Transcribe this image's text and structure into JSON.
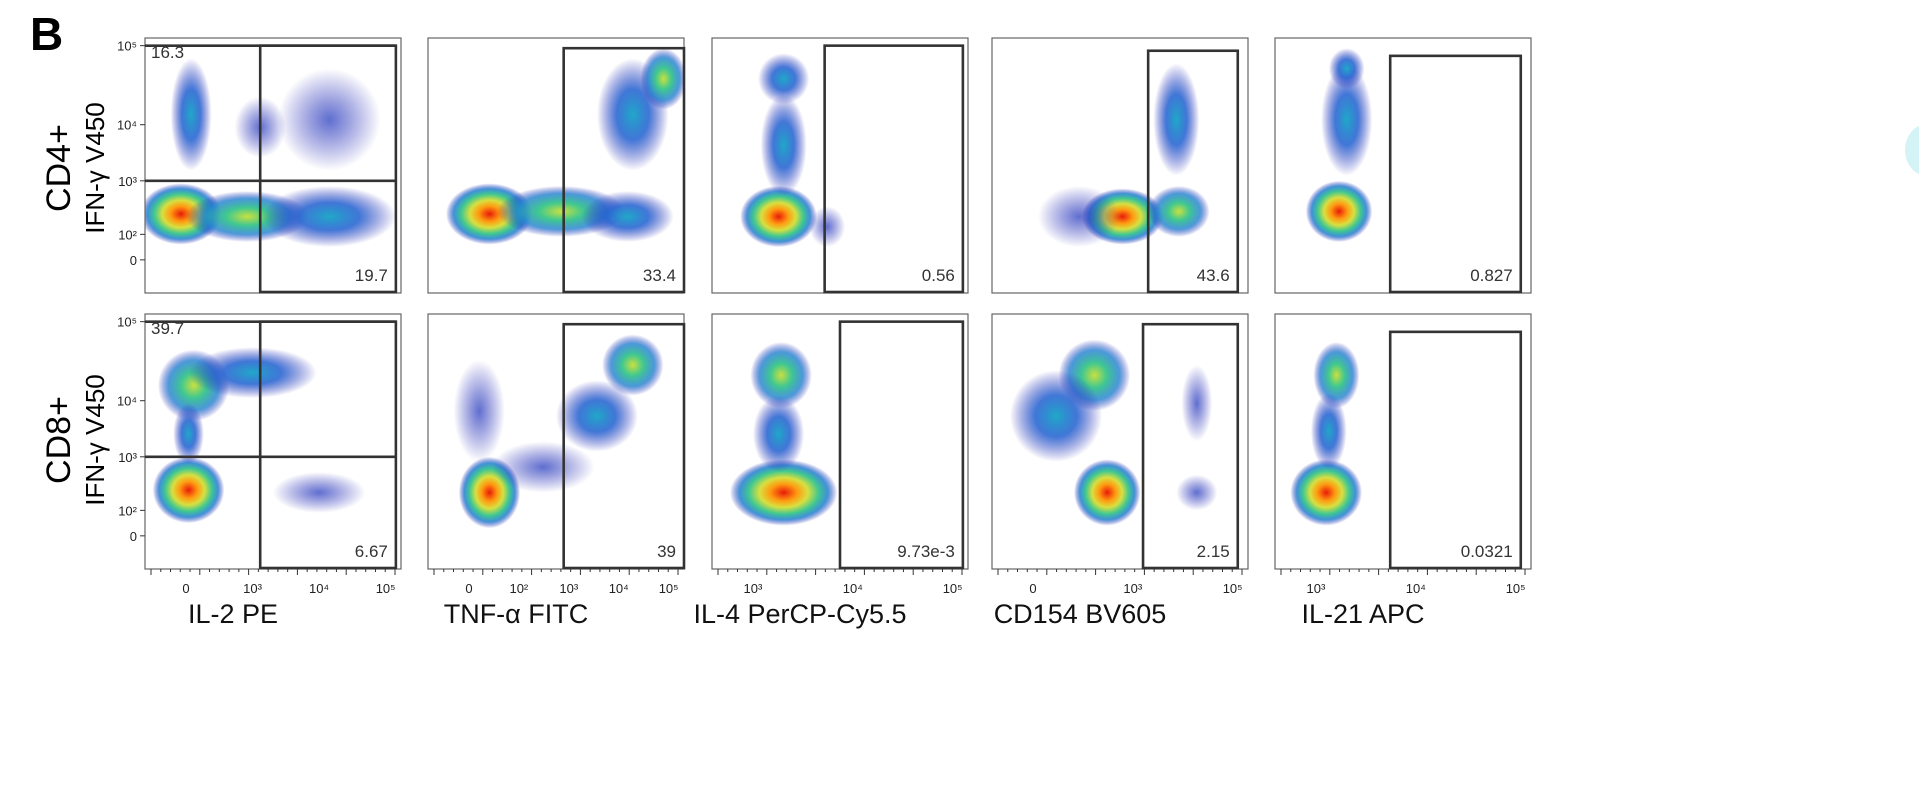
{
  "panel_label": "B",
  "row_labels": [
    "CD4+",
    "CD8+"
  ],
  "y_axis_label": "IFN-γ V450",
  "x_axis_labels": [
    "IL-2 PE",
    "TNF-α FITC",
    "IL-4 PerCP-Cy5.5",
    "CD154 BV605",
    "IL-21 APC"
  ],
  "y_tick_labels": [
    "10⁵",
    "10⁴",
    "10³",
    "10²",
    "0"
  ],
  "x_tick_sets": [
    [
      "0",
      "10³",
      "10⁴",
      "10⁵"
    ],
    [
      "0",
      "10²",
      "10³",
      "10⁴",
      "10⁵"
    ],
    [
      "10³",
      "10⁴",
      "10⁵"
    ],
    [
      "0",
      "10³",
      "10⁵"
    ],
    [
      "10³",
      "10⁴",
      "10⁵"
    ]
  ],
  "colors": {
    "density_scale": [
      "#2020b0",
      "#1f5fd0",
      "#20a8c8",
      "#40c890",
      "#d8e040",
      "#ff9a10",
      "#e81b0a"
    ],
    "gate": "#333333",
    "frame": "#666666"
  },
  "chart_data": [
    {
      "type": "scatter",
      "row": "CD4+",
      "xlabel": "IL-2 PE",
      "ylabel": "IFN-γ V450",
      "gate_values": [
        {
          "label": "16.3",
          "position": "top-left"
        },
        {
          "label": "19.7",
          "position": "bottom-right"
        }
      ]
    },
    {
      "type": "scatter",
      "row": "CD4+",
      "xlabel": "TNF-α FITC",
      "ylabel": "IFN-γ V450",
      "gate_values": [
        {
          "label": "33.4",
          "position": "bottom-right"
        }
      ]
    },
    {
      "type": "scatter",
      "row": "CD4+",
      "xlabel": "IL-4 PerCP-Cy5.5",
      "ylabel": "IFN-γ V450",
      "gate_values": [
        {
          "label": "0.56",
          "position": "bottom-right"
        }
      ]
    },
    {
      "type": "scatter",
      "row": "CD4+",
      "xlabel": "CD154 BV605",
      "ylabel": "IFN-γ V450",
      "gate_values": [
        {
          "label": "43.6",
          "position": "bottom-right"
        }
      ]
    },
    {
      "type": "scatter",
      "row": "CD4+",
      "xlabel": "IL-21 APC",
      "ylabel": "IFN-γ V450",
      "gate_values": [
        {
          "label": "0.827",
          "position": "bottom-right"
        }
      ]
    },
    {
      "type": "scatter",
      "row": "CD8+",
      "xlabel": "IL-2 PE",
      "ylabel": "IFN-γ V450",
      "gate_values": [
        {
          "label": "39.7",
          "position": "top-left"
        },
        {
          "label": "6.67",
          "position": "bottom-right"
        }
      ]
    },
    {
      "type": "scatter",
      "row": "CD8+",
      "xlabel": "TNF-α FITC",
      "ylabel": "IFN-γ V450",
      "gate_values": [
        {
          "label": "39",
          "position": "bottom-right"
        }
      ]
    },
    {
      "type": "scatter",
      "row": "CD8+",
      "xlabel": "IL-4 PerCP-Cy5.5",
      "ylabel": "IFN-γ V450",
      "gate_values": [
        {
          "label": "9.73e-3",
          "position": "bottom-right"
        }
      ]
    },
    {
      "type": "scatter",
      "row": "CD8+",
      "xlabel": "CD154 BV605",
      "ylabel": "IFN-γ V450",
      "gate_values": [
        {
          "label": "2.15",
          "position": "bottom-right"
        }
      ]
    },
    {
      "type": "scatter",
      "row": "CD8+",
      "xlabel": "IL-21 APC",
      "ylabel": "IFN-γ V450",
      "gate_values": [
        {
          "label": "0.0321",
          "position": "bottom-right"
        }
      ]
    }
  ]
}
